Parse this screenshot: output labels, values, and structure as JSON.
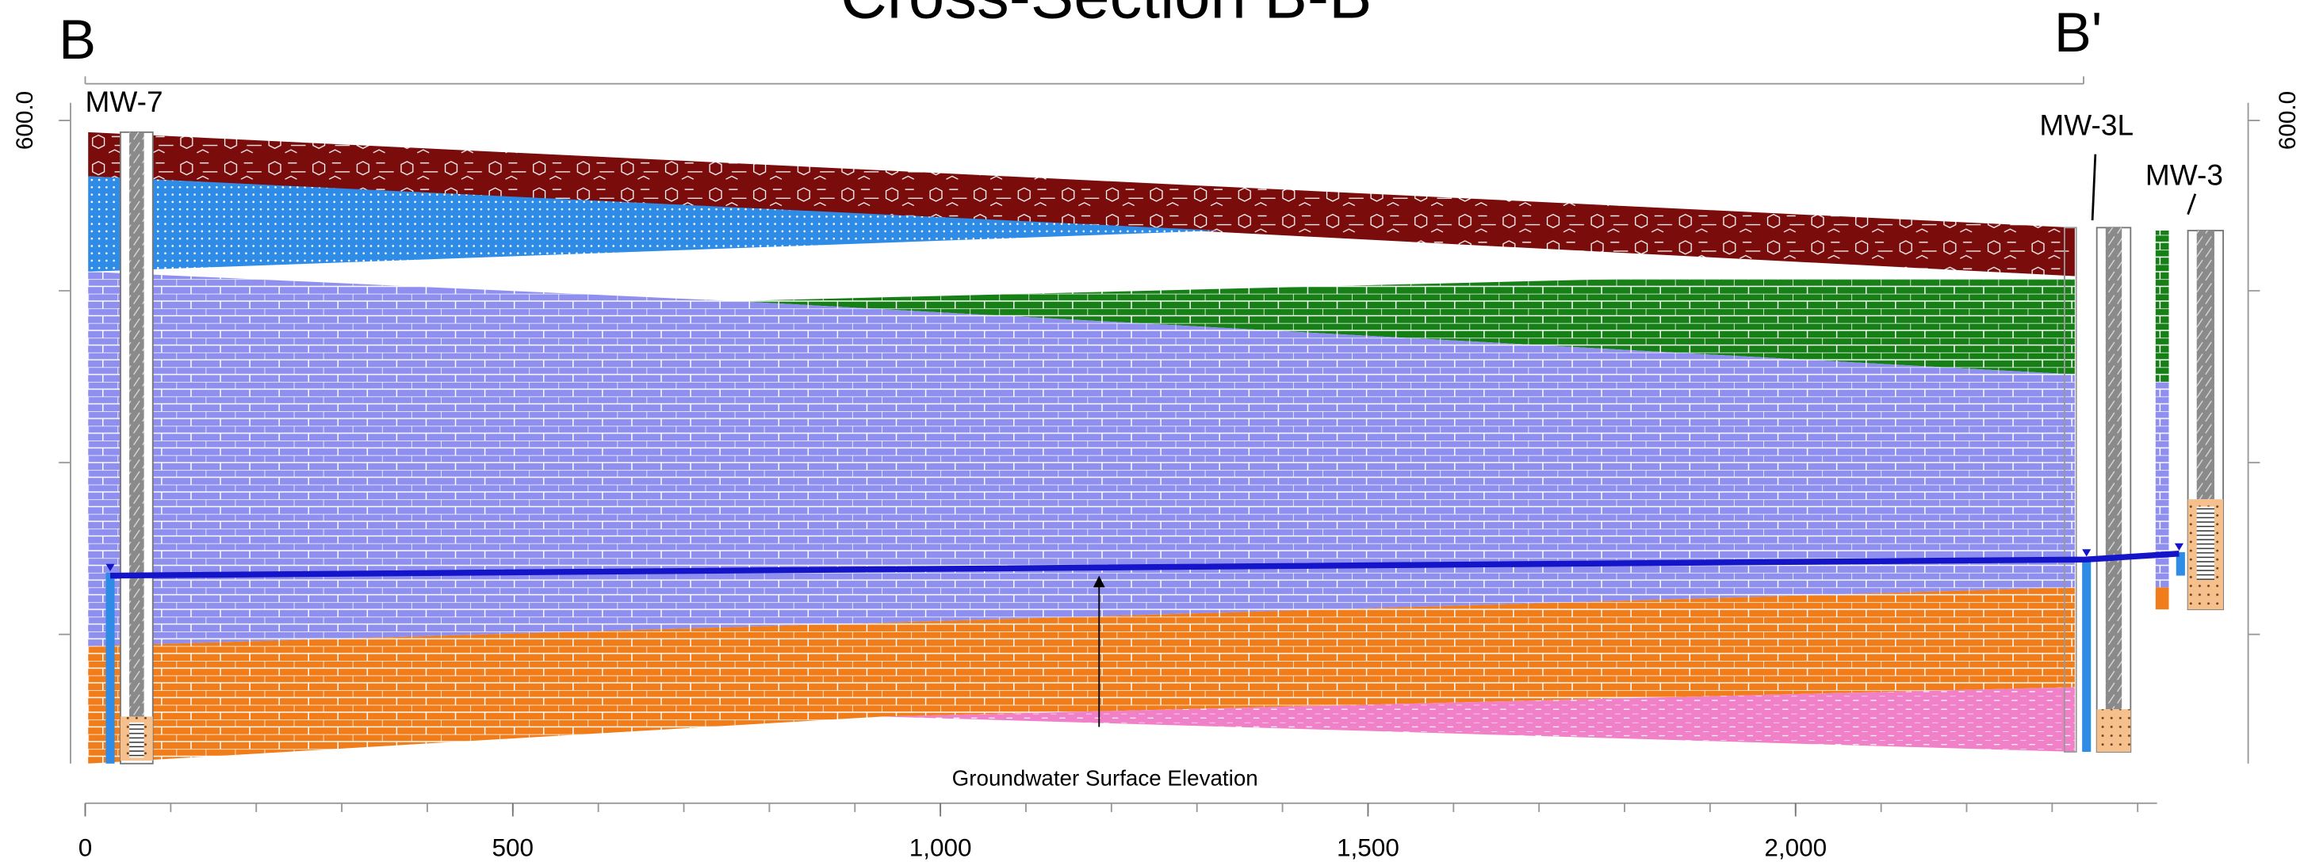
{
  "header": {
    "title": "Cross-Section B-B'",
    "start_label": "B",
    "end_label": "B'"
  },
  "wells": [
    {
      "label": "MW-7"
    },
    {
      "label": "MW-3L"
    },
    {
      "label": "MW-3"
    }
  ],
  "annotation": "Groundwater Surface Elevation",
  "y_axis": {
    "left_label": "600.0",
    "right_label": "600.0"
  },
  "x_axis": {
    "ticks": [
      {
        "value": 0,
        "label": "0"
      },
      {
        "value": 500,
        "label": "500"
      },
      {
        "value": 1000,
        "label": "1,000"
      },
      {
        "value": 1500,
        "label": "1,500"
      },
      {
        "value": 2000,
        "label": "2,000"
      }
    ]
  }
}
